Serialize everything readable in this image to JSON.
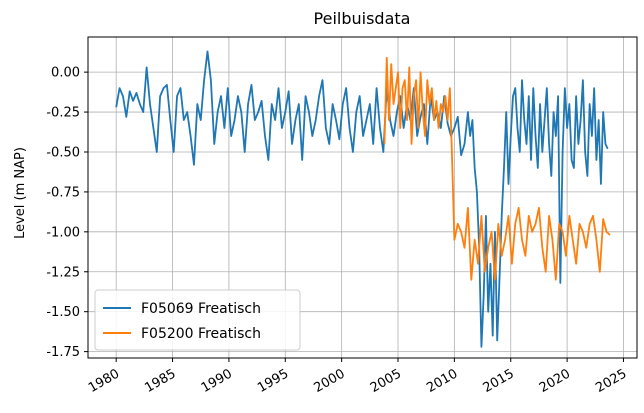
{
  "chart_data": {
    "type": "line",
    "title": "Peilbuisdata",
    "xlabel": "",
    "ylabel": "Level (m NAP)",
    "xlim": [
      1977.5,
      2026.2
    ],
    "ylim": [
      -1.79,
      0.22
    ],
    "grid": true,
    "legend_position": "lower-left",
    "x_ticks": [
      "1980",
      "1985",
      "1990",
      "1995",
      "2000",
      "2005",
      "2010",
      "2015",
      "2020",
      "2025"
    ],
    "y_ticks": [
      "0.00",
      "-0.25",
      "-0.50",
      "-0.75",
      "-1.00",
      "-1.25",
      "-1.50",
      "-1.75"
    ],
    "series": [
      {
        "name": "F05069 Freatisch",
        "color": "#1f77b4",
        "x": [
          1980.0,
          1980.3,
          1980.6,
          1980.9,
          1981.2,
          1981.5,
          1981.8,
          1982.1,
          1982.4,
          1982.7,
          1983.0,
          1983.3,
          1983.6,
          1983.9,
          1984.2,
          1984.5,
          1984.8,
          1985.1,
          1985.4,
          1985.7,
          1986.0,
          1986.3,
          1986.6,
          1986.9,
          1987.2,
          1987.5,
          1987.8,
          1988.1,
          1988.4,
          1988.7,
          1989.0,
          1989.3,
          1989.6,
          1989.9,
          1990.2,
          1990.5,
          1990.8,
          1991.1,
          1991.4,
          1991.7,
          1992.0,
          1992.3,
          1992.6,
          1992.9,
          1993.2,
          1993.5,
          1993.8,
          1994.1,
          1994.4,
          1994.7,
          1995.0,
          1995.3,
          1995.6,
          1995.9,
          1996.2,
          1996.5,
          1996.8,
          1997.1,
          1997.4,
          1997.7,
          1998.0,
          1998.3,
          1998.6,
          1998.9,
          1999.2,
          1999.5,
          1999.8,
          2000.1,
          2000.4,
          2000.7,
          2001.0,
          2001.3,
          2001.6,
          2001.9,
          2002.2,
          2002.5,
          2002.8,
          2003.1,
          2003.4,
          2003.7,
          2004.0,
          2004.3,
          2004.6,
          2004.9,
          2005.2,
          2005.5,
          2005.8,
          2006.1,
          2006.4,
          2006.7,
          2007.0,
          2007.3,
          2007.6,
          2007.9,
          2008.2,
          2008.5,
          2008.8,
          2009.1,
          2009.4,
          2009.7,
          2010.0,
          2010.3,
          2010.6,
          2010.9,
          2011.2,
          2011.4,
          2011.6,
          2011.8,
          2012.0,
          2012.2,
          2012.4,
          2012.6,
          2012.8,
          2013.0,
          2013.2,
          2013.4,
          2013.6,
          2013.8,
          2014.0,
          2014.2,
          2014.4,
          2014.6,
          2014.8,
          2015.0,
          2015.2,
          2015.4,
          2015.6,
          2015.8,
          2016.0,
          2016.2,
          2016.4,
          2016.6,
          2016.8,
          2017.0,
          2017.2,
          2017.4,
          2017.6,
          2017.8,
          2018.0,
          2018.2,
          2018.4,
          2018.6,
          2018.8,
          2019.0,
          2019.2,
          2019.4,
          2019.6,
          2019.8,
          2020.0,
          2020.2,
          2020.4,
          2020.6,
          2020.8,
          2021.0,
          2021.2,
          2021.4,
          2021.6,
          2021.8,
          2022.0,
          2022.2,
          2022.4,
          2022.6,
          2022.8,
          2023.0,
          2023.2,
          2023.4,
          2023.6
        ],
        "values": [
          -0.22,
          -0.1,
          -0.15,
          -0.28,
          -0.12,
          -0.18,
          -0.13,
          -0.2,
          -0.25,
          0.03,
          -0.2,
          -0.35,
          -0.5,
          -0.15,
          -0.1,
          -0.08,
          -0.3,
          -0.5,
          -0.15,
          -0.1,
          -0.3,
          -0.25,
          -0.4,
          -0.58,
          -0.2,
          -0.3,
          -0.05,
          0.13,
          -0.05,
          -0.45,
          -0.25,
          -0.15,
          -0.35,
          -0.1,
          -0.4,
          -0.3,
          -0.15,
          -0.25,
          -0.5,
          -0.2,
          -0.08,
          -0.3,
          -0.25,
          -0.18,
          -0.4,
          -0.55,
          -0.2,
          -0.3,
          -0.1,
          -0.35,
          -0.25,
          -0.12,
          -0.45,
          -0.3,
          -0.2,
          -0.55,
          -0.15,
          -0.25,
          -0.4,
          -0.3,
          -0.15,
          -0.05,
          -0.35,
          -0.45,
          -0.2,
          -0.3,
          -0.42,
          -0.2,
          -0.1,
          -0.35,
          -0.5,
          -0.25,
          -0.15,
          -0.4,
          -0.3,
          -0.2,
          -0.45,
          -0.1,
          -0.35,
          -0.5,
          -0.1,
          -0.3,
          -0.4,
          -0.25,
          -0.15,
          -0.35,
          -0.2,
          -0.3,
          -0.1,
          -0.4,
          -0.28,
          -0.2,
          -0.45,
          -0.15,
          -0.3,
          -0.25,
          -0.35,
          -0.15,
          -0.32,
          -0.4,
          -0.35,
          -0.28,
          -0.52,
          -0.45,
          -0.25,
          -0.4,
          -0.3,
          -0.6,
          -0.75,
          -1.1,
          -1.72,
          -1.4,
          -0.9,
          -1.5,
          -1.2,
          -1.65,
          -1.0,
          -1.68,
          -1.3,
          -0.9,
          -0.6,
          -0.25,
          -0.7,
          -0.4,
          -0.15,
          -0.1,
          -0.35,
          -0.5,
          -0.05,
          -0.3,
          -0.45,
          -0.15,
          -0.55,
          -0.1,
          -0.4,
          -0.6,
          -0.2,
          -0.5,
          -0.3,
          -0.1,
          -0.45,
          -0.65,
          -0.25,
          -0.4,
          -0.15,
          -1.32,
          -0.5,
          -0.1,
          -0.35,
          -0.2,
          -0.55,
          -0.6,
          -0.15,
          -0.45,
          -0.3,
          -0.05,
          -0.5,
          -0.65,
          -0.2,
          -0.4,
          -0.1,
          -0.55,
          -0.3,
          -0.7,
          -0.25,
          -0.45,
          -0.48
        ]
      },
      {
        "name": "F05200 Freatisch",
        "color": "#ff7f0e",
        "x": [
          2003.8,
          2004.0,
          2004.2,
          2004.4,
          2004.6,
          2004.8,
          2005.0,
          2005.2,
          2005.4,
          2005.6,
          2005.8,
          2006.0,
          2006.2,
          2006.4,
          2006.6,
          2006.8,
          2007.0,
          2007.2,
          2007.4,
          2007.6,
          2007.8,
          2008.0,
          2008.2,
          2008.4,
          2008.6,
          2008.8,
          2009.0,
          2009.2,
          2009.4,
          2009.6,
          2009.8,
          2010.0,
          2010.3,
          2010.6,
          2010.9,
          2011.2,
          2011.5,
          2011.8,
          2012.1,
          2012.4,
          2012.7,
          2013.0,
          2013.3,
          2013.6,
          2013.9,
          2014.2,
          2014.5,
          2014.8,
          2015.1,
          2015.4,
          2015.7,
          2016.0,
          2016.3,
          2016.6,
          2016.9,
          2017.2,
          2017.5,
          2017.8,
          2018.1,
          2018.4,
          2018.7,
          2019.0,
          2019.3,
          2019.6,
          2019.9,
          2020.2,
          2020.5,
          2020.8,
          2021.1,
          2021.4,
          2021.7,
          2022.0,
          2022.3,
          2022.6,
          2022.9,
          2023.2,
          2023.5,
          2023.8
        ],
        "values": [
          -0.45,
          0.09,
          -0.3,
          0.05,
          -0.2,
          -0.1,
          0.0,
          -0.35,
          -0.1,
          -0.05,
          -0.3,
          0.03,
          -0.45,
          -0.15,
          -0.05,
          -0.35,
          0.0,
          -0.25,
          -0.4,
          -0.05,
          -0.2,
          -0.1,
          -0.3,
          -0.18,
          -0.35,
          -0.2,
          -0.25,
          -0.15,
          -0.3,
          -0.1,
          -0.55,
          -1.05,
          -0.95,
          -1.0,
          -1.1,
          -0.85,
          -1.3,
          -1.05,
          -1.2,
          -0.9,
          -1.25,
          -1.1,
          -1.0,
          -1.3,
          -0.95,
          -1.15,
          -1.05,
          -0.9,
          -1.2,
          -0.95,
          -0.85,
          -1.05,
          -1.15,
          -0.9,
          -1.0,
          -0.95,
          -0.85,
          -1.1,
          -1.25,
          -0.9,
          -1.05,
          -1.3,
          -0.95,
          -1.0,
          -1.15,
          -0.9,
          -1.05,
          -1.2,
          -0.95,
          -1.0,
          -1.1,
          -0.95,
          -0.9,
          -1.05,
          -1.25,
          -0.92,
          -1.0,
          -1.02
        ]
      }
    ]
  }
}
